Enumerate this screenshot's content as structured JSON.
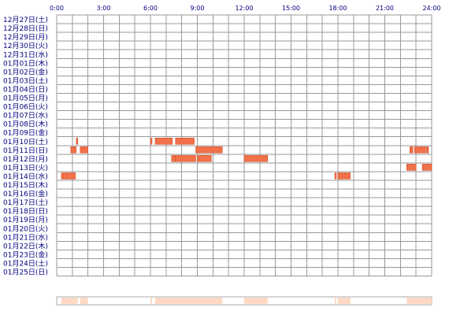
{
  "chart_data": {
    "type": "heatmap",
    "title": "",
    "xlabel": "",
    "ylabel": "",
    "x_unit": "hour",
    "xlim": [
      0,
      24
    ],
    "x_ticks": [
      "0:00",
      "3:00",
      "6:00",
      "9:00",
      "12:00",
      "15:00",
      "18:00",
      "21:00",
      "24:00"
    ],
    "rows": [
      "12月27日(土)",
      "12月28日(日)",
      "12月29日(月)",
      "12月30日(火)",
      "12月31日(水)",
      "01月01日(木)",
      "01月02日(金)",
      "01月03日(土)",
      "01月04日(日)",
      "01月05日(月)",
      "01月06日(火)",
      "01月07日(水)",
      "01月08日(木)",
      "01月09日(金)",
      "01月10日(土)",
      "01月11日(日)",
      "01月12日(月)",
      "01月13日(火)",
      "01月14日(水)",
      "01月15日(木)",
      "01月16日(金)",
      "01月17日(土)",
      "01月18日(日)",
      "01月19日(月)",
      "01月20日(火)",
      "01月21日(水)",
      "01月22日(木)",
      "01月23日(金)",
      "01月24日(土)",
      "01月25日(日)"
    ],
    "grid": true,
    "activity_color": "#f0714a",
    "activity_edge_color": "#cc4422",
    "grid_color": "#999999",
    "summary_color": "#ffd9c4",
    "activity": [
      {
        "row": 14,
        "start": 1.25,
        "end": 1.35
      },
      {
        "row": 14,
        "start": 6.0,
        "end": 6.1
      },
      {
        "row": 14,
        "start": 6.3,
        "end": 7.4
      },
      {
        "row": 14,
        "start": 7.6,
        "end": 8.8
      },
      {
        "row": 15,
        "start": 0.9,
        "end": 1.25
      },
      {
        "row": 15,
        "start": 1.5,
        "end": 2.0
      },
      {
        "row": 15,
        "start": 8.9,
        "end": 10.6
      },
      {
        "row": 15,
        "start": 22.6,
        "end": 22.8
      },
      {
        "row": 15,
        "start": 22.9,
        "end": 23.6
      },
      {
        "row": 15,
        "start": 23.65,
        "end": 23.8
      },
      {
        "row": 16,
        "start": 7.35,
        "end": 7.6
      },
      {
        "row": 16,
        "start": 7.6,
        "end": 8.9
      },
      {
        "row": 16,
        "start": 9.0,
        "end": 9.9
      },
      {
        "row": 16,
        "start": 12.0,
        "end": 13.5
      },
      {
        "row": 17,
        "start": 22.4,
        "end": 23.0
      },
      {
        "row": 17,
        "start": 23.4,
        "end": 24.0
      },
      {
        "row": 18,
        "start": 0.3,
        "end": 1.2
      },
      {
        "row": 18,
        "start": 17.8,
        "end": 17.9
      },
      {
        "row": 18,
        "start": 18.0,
        "end": 18.8
      }
    ]
  }
}
